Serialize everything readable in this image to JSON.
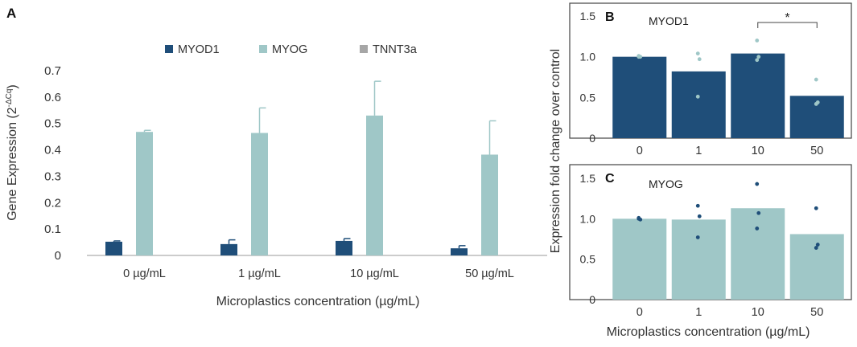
{
  "panels": {
    "a": {
      "letter": "A"
    },
    "b": {
      "letter": "B"
    },
    "c": {
      "letter": "C"
    }
  },
  "colors": {
    "myod1": "#1f4e79",
    "myog": "#9fc7c7",
    "tnnt3a": "#a6a6a6",
    "text": "#333333",
    "axis": "#888888"
  },
  "chart_data": [
    {
      "type": "bar",
      "panel": "A",
      "categories": [
        "0 µg/mL",
        "1 µg/mL",
        "10 µg/mL",
        "50 µg/mL"
      ],
      "series": [
        {
          "name": "MYOD1",
          "values": [
            0.052,
            0.043,
            0.055,
            0.027
          ],
          "errors": [
            0.003,
            0.016,
            0.009,
            0.01
          ]
        },
        {
          "name": "MYOG",
          "values": [
            0.468,
            0.464,
            0.53,
            0.382
          ],
          "errors": [
            0.006,
            0.095,
            0.13,
            0.128
          ]
        },
        {
          "name": "TNNT3a",
          "values": [
            0,
            0,
            0,
            0
          ],
          "errors": [
            0,
            0,
            0,
            0
          ]
        }
      ],
      "xlabel": "Microplastics concentration (µg/mL)",
      "ylabel": "Gene Expression (2",
      "ylabel_sup": "-ΔCq",
      "ylabel_close": ")",
      "ylim": [
        0,
        0.7
      ],
      "yticks": [
        "0",
        "0.1",
        "0.2",
        "0.3",
        "0.4",
        "0.5",
        "0.6",
        "0.7"
      ],
      "legend_position": "top",
      "grid": false
    },
    {
      "type": "bar",
      "panel": "B",
      "title": "MYOD1",
      "categories": [
        "0",
        "1",
        "10",
        "50"
      ],
      "values": [
        1.0,
        0.82,
        1.04,
        0.52
      ],
      "points": [
        [
          1.0,
          1.0,
          1.01
        ],
        [
          1.04,
          0.97,
          0.51
        ],
        [
          1.2,
          1.0,
          0.96
        ],
        [
          0.72,
          0.44,
          0.42
        ]
      ],
      "significance": {
        "from": "10",
        "to": "50",
        "label": "*"
      },
      "ylim": [
        0,
        1.5
      ],
      "yticks": [
        "0",
        "0.5",
        "1.0",
        "1.5"
      ],
      "grid": false
    },
    {
      "type": "bar",
      "panel": "C",
      "title": "MYOG",
      "categories": [
        "0",
        "1",
        "10",
        "50"
      ],
      "values": [
        1.0,
        0.99,
        1.13,
        0.81
      ],
      "points": [
        [
          1.0,
          0.99,
          1.01
        ],
        [
          1.16,
          1.03,
          0.77
        ],
        [
          1.43,
          1.07,
          0.88
        ],
        [
          1.13,
          0.68,
          0.64
        ]
      ],
      "ylim": [
        0,
        1.5
      ],
      "yticks": [
        "0",
        "0.5",
        "1.0",
        "1.5"
      ],
      "grid": false
    }
  ],
  "shared": {
    "bc_ylabel": "Expression fold change over control",
    "bc_xlabel": "Microplastics concentration (µg/mL)"
  }
}
